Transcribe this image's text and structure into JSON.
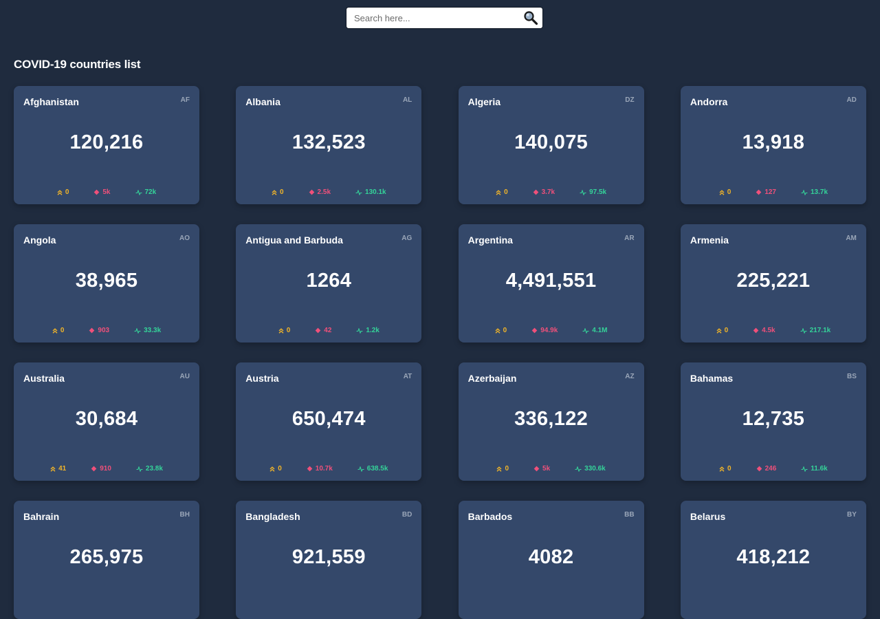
{
  "search": {
    "placeholder": "Search here...",
    "value": ""
  },
  "title": "COVID-19 countries list",
  "colors": {
    "background": "#1f2b3e",
    "card": "#34486a",
    "active": "#f0b429",
    "deaths": "#f0507a",
    "recovered": "#34d399"
  },
  "icons": {
    "search": "magnifying-glass-icon",
    "active": "double-chevron-up-icon",
    "deaths": "diamond-icon",
    "recovered": "pulse-icon"
  },
  "countries": [
    {
      "name": "Afghanistan",
      "code": "AF",
      "total": "120,216",
      "active": "0",
      "deaths": "5k",
      "recovered": "72k"
    },
    {
      "name": "Albania",
      "code": "AL",
      "total": "132,523",
      "active": "0",
      "deaths": "2.5k",
      "recovered": "130.1k"
    },
    {
      "name": "Algeria",
      "code": "DZ",
      "total": "140,075",
      "active": "0",
      "deaths": "3.7k",
      "recovered": "97.5k"
    },
    {
      "name": "Andorra",
      "code": "AD",
      "total": "13,918",
      "active": "0",
      "deaths": "127",
      "recovered": "13.7k"
    },
    {
      "name": "Angola",
      "code": "AO",
      "total": "38,965",
      "active": "0",
      "deaths": "903",
      "recovered": "33.3k"
    },
    {
      "name": "Antigua and Barbuda",
      "code": "AG",
      "total": "1264",
      "active": "0",
      "deaths": "42",
      "recovered": "1.2k"
    },
    {
      "name": "Argentina",
      "code": "AR",
      "total": "4,491,551",
      "active": "0",
      "deaths": "94.9k",
      "recovered": "4.1M"
    },
    {
      "name": "Armenia",
      "code": "AM",
      "total": "225,221",
      "active": "0",
      "deaths": "4.5k",
      "recovered": "217.1k"
    },
    {
      "name": "Australia",
      "code": "AU",
      "total": "30,684",
      "active": "41",
      "deaths": "910",
      "recovered": "23.8k"
    },
    {
      "name": "Austria",
      "code": "AT",
      "total": "650,474",
      "active": "0",
      "deaths": "10.7k",
      "recovered": "638.5k"
    },
    {
      "name": "Azerbaijan",
      "code": "AZ",
      "total": "336,122",
      "active": "0",
      "deaths": "5k",
      "recovered": "330.6k"
    },
    {
      "name": "Bahamas",
      "code": "BS",
      "total": "12,735",
      "active": "0",
      "deaths": "246",
      "recovered": "11.6k"
    },
    {
      "name": "Bahrain",
      "code": "BH",
      "total": "265,975",
      "active": "",
      "deaths": "",
      "recovered": ""
    },
    {
      "name": "Bangladesh",
      "code": "BD",
      "total": "921,559",
      "active": "",
      "deaths": "",
      "recovered": ""
    },
    {
      "name": "Barbados",
      "code": "BB",
      "total": "4082",
      "active": "",
      "deaths": "",
      "recovered": ""
    },
    {
      "name": "Belarus",
      "code": "BY",
      "total": "418,212",
      "active": "",
      "deaths": "",
      "recovered": ""
    }
  ]
}
